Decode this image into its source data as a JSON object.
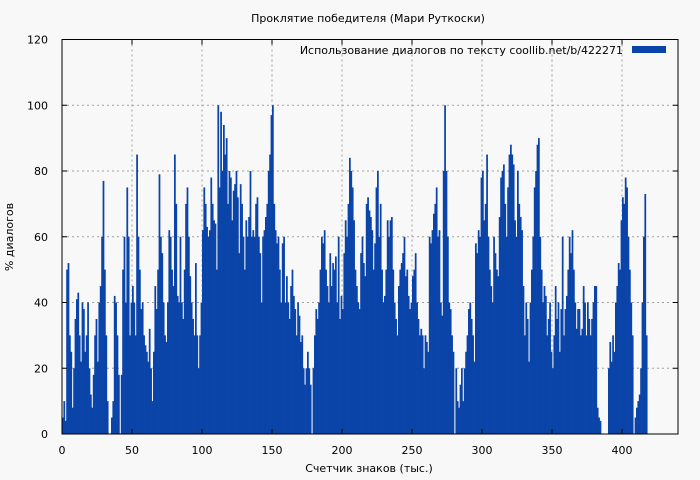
{
  "chart_data": {
    "type": "bar",
    "title": "Проклятие победителя (Мари Руткоски)",
    "xlabel": "Счетчик знаков (тыс.)",
    "ylabel": "% диалогов",
    "legend": "Использование диалогов по тексту  coollib.net/b/422271",
    "legend_position": "top-right",
    "grid": true,
    "bar_color": "#0b44a8",
    "background": "#f8f8f8",
    "xlim": [
      0,
      440
    ],
    "ylim": [
      0,
      120
    ],
    "xticks": [
      0,
      50,
      100,
      150,
      200,
      250,
      300,
      350,
      400
    ],
    "yticks": [
      0,
      20,
      40,
      60,
      80,
      100,
      120
    ],
    "x_start": 0,
    "x_step": 1,
    "values": [
      5,
      10,
      4,
      50,
      52,
      30,
      25,
      8,
      20,
      35,
      41,
      43,
      30,
      22,
      40,
      38,
      25,
      30,
      40,
      20,
      12,
      8,
      18,
      30,
      35,
      22,
      40,
      45,
      60,
      77,
      50,
      30,
      10,
      0,
      0,
      5,
      10,
      42,
      40,
      30,
      18,
      0,
      18,
      50,
      60,
      40,
      75,
      60,
      30,
      40,
      45,
      40,
      30,
      85,
      60,
      50,
      38,
      40,
      30,
      27,
      25,
      22,
      32,
      20,
      10,
      25,
      45,
      38,
      50,
      79,
      60,
      55,
      40,
      30,
      28,
      40,
      62,
      60,
      50,
      45,
      85,
      70,
      42,
      40,
      60,
      40,
      35,
      50,
      70,
      75,
      60,
      48,
      40,
      35,
      30,
      52,
      30,
      20,
      30,
      40,
      62,
      75,
      70,
      63,
      60,
      62,
      78,
      70,
      65,
      64,
      50,
      100,
      75,
      98,
      80,
      94,
      85,
      90,
      70,
      80,
      78,
      65,
      74,
      76,
      80,
      72,
      55,
      76,
      70,
      60,
      50,
      65,
      60,
      66,
      80,
      60,
      62,
      60,
      70,
      72,
      60,
      55,
      40,
      60,
      62,
      66,
      70,
      80,
      85,
      97,
      100,
      70,
      62,
      58,
      60,
      50,
      40,
      58,
      60,
      40,
      48,
      40,
      35,
      45,
      50,
      42,
      38,
      30,
      40,
      36,
      28,
      30,
      20,
      15,
      20,
      25,
      20,
      15,
      0,
      20,
      30,
      38,
      35,
      40,
      50,
      60,
      58,
      62,
      50,
      45,
      40,
      55,
      45,
      52,
      50,
      54,
      40,
      60,
      35,
      42,
      38,
      55,
      65,
      60,
      70,
      84,
      80,
      75,
      65,
      50,
      45,
      40,
      38,
      55,
      60,
      52,
      48,
      70,
      72,
      68,
      66,
      62,
      50,
      58,
      75,
      80,
      60,
      70,
      50,
      40,
      42,
      50,
      65,
      60,
      65,
      66,
      50,
      40,
      35,
      30,
      45,
      50,
      52,
      55,
      60,
      48,
      50,
      42,
      38,
      40,
      48,
      50,
      55,
      40,
      35,
      30,
      32,
      30,
      20,
      30,
      28,
      25,
      60,
      58,
      62,
      67,
      70,
      75,
      60,
      62,
      40,
      36,
      80,
      100,
      80,
      60,
      40,
      38,
      30,
      25,
      0,
      20,
      10,
      8,
      15,
      20,
      10,
      20,
      25,
      30,
      38,
      40,
      35,
      30,
      22,
      58,
      55,
      62,
      60,
      78,
      80,
      65,
      70,
      85,
      60,
      50,
      45,
      40,
      60,
      55,
      50,
      48,
      66,
      78,
      80,
      82,
      70,
      60,
      75,
      85,
      88,
      85,
      82,
      65,
      60,
      80,
      70,
      66,
      62,
      45,
      30,
      40,
      35,
      22,
      40,
      50,
      60,
      75,
      80,
      88,
      90,
      60,
      50,
      40,
      45,
      42,
      30,
      35,
      40,
      25,
      20,
      30,
      45,
      35,
      40,
      25,
      38,
      60,
      30,
      38,
      42,
      50,
      60,
      55,
      62,
      50,
      40,
      32,
      38,
      38,
      30,
      32,
      45,
      40,
      30,
      40,
      35,
      30,
      35,
      40,
      45,
      45,
      8,
      5,
      4,
      0,
      0,
      0,
      0,
      0,
      20,
      28,
      22,
      30,
      25,
      40,
      45,
      52,
      50,
      65,
      72,
      70,
      78,
      75,
      60,
      50,
      40,
      30,
      0,
      5,
      8,
      10,
      12,
      20,
      40,
      60,
      73,
      30
    ]
  }
}
